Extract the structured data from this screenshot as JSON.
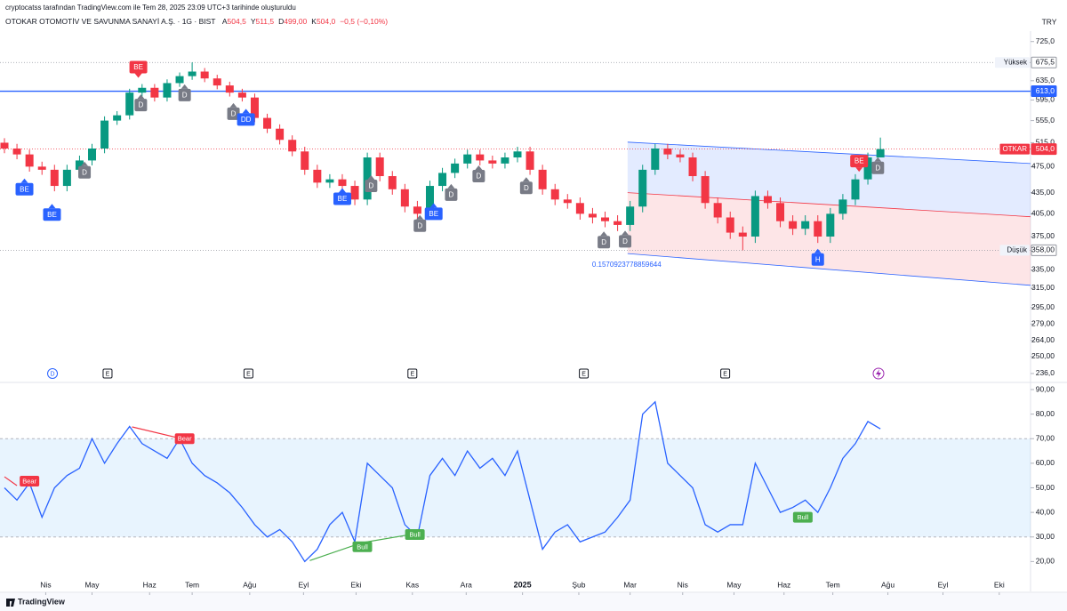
{
  "header": {
    "credit": "cryptocatss tarafından TradingView.com ile Tem 28, 2025 23:09 UTC+3 tarihinde oluşturuldu",
    "currency": "TRY",
    "symbol": "OTOKAR OTOMOTİV VE SAVUNMA SANAYİ A.Ş. · 1G · BIST",
    "ohlc": [
      {
        "k": "A",
        "v": "504,5"
      },
      {
        "k": "Y",
        "v": "511,5"
      },
      {
        "k": "D",
        "v": "499,00"
      },
      {
        "k": "K",
        "v": "504,0"
      }
    ],
    "change": "−0,5 (−0,10%)"
  },
  "footer": {
    "brand": "TradingView"
  },
  "chart_data": [
    {
      "type": "candlestick",
      "log": true,
      "up_color": "#089981",
      "down_color": "#f23645",
      "xlim": [
        0,
        82
      ],
      "ylim": [
        229,
        751
      ],
      "x": [
        0,
        1,
        2,
        3,
        4,
        5,
        6,
        7,
        8,
        9,
        10,
        11,
        12,
        13,
        14,
        15,
        16,
        17,
        18,
        19,
        20,
        21,
        22,
        23,
        24,
        25,
        26,
        27,
        28,
        29,
        30,
        31,
        32,
        33,
        34,
        35,
        36,
        37,
        38,
        39,
        40,
        41,
        42,
        43,
        44,
        45,
        46,
        47,
        48,
        49,
        50,
        51,
        52,
        53,
        54,
        55,
        56,
        57,
        58,
        59,
        60,
        61,
        62,
        63,
        64,
        65,
        66,
        67,
        68,
        69,
        70
      ],
      "open": [
        515,
        505,
        495,
        475,
        470,
        445,
        470,
        485,
        505,
        555,
        565,
        610,
        620,
        600,
        630,
        645,
        655,
        640,
        625,
        610,
        600,
        560,
        540,
        520,
        500,
        470,
        450,
        455,
        445,
        425,
        490,
        460,
        440,
        415,
        405,
        445,
        465,
        480,
        495,
        485,
        480,
        490,
        500,
        470,
        440,
        425,
        420,
        405,
        400,
        395,
        390,
        415,
        470,
        505,
        495,
        490,
        460,
        420,
        400,
        380,
        375,
        430,
        420,
        395,
        385,
        395,
        375,
        405,
        425,
        455,
        490
      ],
      "high": [
        523,
        513,
        503,
        483,
        478,
        478,
        493,
        513,
        563,
        573,
        618,
        628,
        628,
        638,
        653,
        675.5,
        663,
        648,
        633,
        618,
        608,
        568,
        548,
        528,
        508,
        478,
        463,
        463,
        453,
        498,
        498,
        468,
        448,
        423,
        453,
        473,
        488,
        503,
        503,
        493,
        498,
        508,
        508,
        478,
        448,
        433,
        428,
        413,
        408,
        403,
        423,
        478,
        513,
        513,
        503,
        498,
        468,
        428,
        408,
        388,
        438,
        438,
        428,
        403,
        403,
        403,
        413,
        433,
        463,
        498,
        524
      ],
      "low": [
        497,
        487,
        467,
        462,
        437,
        437,
        462,
        477,
        497,
        547,
        557,
        602,
        592,
        592,
        622,
        637,
        632,
        617,
        602,
        592,
        552,
        532,
        512,
        492,
        462,
        442,
        442,
        437,
        417,
        417,
        452,
        432,
        407,
        397,
        397,
        437,
        457,
        472,
        477,
        472,
        472,
        482,
        462,
        432,
        417,
        412,
        397,
        392,
        387,
        382,
        382,
        407,
        462,
        487,
        482,
        452,
        412,
        392,
        372,
        358,
        367,
        412,
        387,
        377,
        377,
        367,
        367,
        397,
        417,
        447,
        490
      ],
      "close": [
        505,
        495,
        475,
        470,
        445,
        470,
        485,
        505,
        555,
        565,
        610,
        620,
        600,
        630,
        645,
        655,
        640,
        625,
        610,
        600,
        560,
        540,
        520,
        500,
        470,
        450,
        455,
        445,
        425,
        490,
        460,
        440,
        415,
        405,
        445,
        465,
        480,
        495,
        485,
        480,
        490,
        500,
        470,
        440,
        425,
        420,
        405,
        400,
        395,
        390,
        415,
        470,
        505,
        495,
        490,
        460,
        420,
        400,
        380,
        375,
        430,
        420,
        395,
        385,
        395,
        375,
        405,
        425,
        455,
        490,
        504
      ],
      "yticks": [
        {
          "value": 725,
          "label": "725,0"
        },
        {
          "value": 635,
          "label": "635,0"
        },
        {
          "value": 595,
          "label": "595,0"
        },
        {
          "value": 555,
          "label": "555,0"
        },
        {
          "value": 515,
          "label": "515,0"
        },
        {
          "value": 475,
          "label": "475,00"
        },
        {
          "value": 435,
          "label": "435,00"
        },
        {
          "value": 405,
          "label": "405,00"
        },
        {
          "value": 375,
          "label": "375,00"
        },
        {
          "value": 335,
          "label": "335,00"
        },
        {
          "value": 315,
          "label": "315,00"
        },
        {
          "value": 295,
          "label": "295,00"
        },
        {
          "value": 279,
          "label": "279,00"
        },
        {
          "value": 264,
          "label": "264,00"
        },
        {
          "value": 250,
          "label": "250,00"
        },
        {
          "value": 236,
          "label": "236,0"
        }
      ],
      "levels": [
        {
          "name": "Yüksek",
          "value": 675.5,
          "label": "675,5",
          "color": "#9598a1",
          "style": "dotted"
        },
        {
          "value": 613,
          "label": "613,0",
          "color": "#2962ff",
          "style": "solid"
        },
        {
          "name": "OTKAR",
          "value": 504,
          "label": "504,0",
          "color": "#f23645",
          "style": "dotted"
        },
        {
          "name": "Düşük",
          "value": 358,
          "label": "358,00",
          "color": "#9598a1",
          "style": "dotted"
        }
      ],
      "channel": {
        "upper": [
          [
            49.8,
            516
          ],
          [
            82,
            480
          ]
        ],
        "middle": [
          [
            49.8,
            435
          ],
          [
            82,
            401
          ]
        ],
        "lower": [
          [
            49.8,
            354
          ],
          [
            82,
            318
          ]
        ],
        "label": "0.1570923778859644",
        "upper_color": "#2962ff",
        "lower_color": "#f23645"
      },
      "markers": [
        {
          "label": "BE",
          "x": 1.6,
          "y": 440,
          "color": "#2962ff",
          "arrow": "up"
        },
        {
          "label": "BE",
          "x": 3.8,
          "y": 404,
          "color": "#2962ff",
          "arrow": "up"
        },
        {
          "label": "D",
          "x": 6.4,
          "y": 466,
          "color": "#787b86",
          "arrow": "up"
        },
        {
          "label": "BE",
          "x": 10.7,
          "y": 665,
          "color": "#f23645",
          "arrow": "down"
        },
        {
          "label": "D",
          "x": 10.9,
          "y": 585,
          "color": "#787b86",
          "arrow": "up"
        },
        {
          "label": "D",
          "x": 14.4,
          "y": 605,
          "color": "#787b86",
          "arrow": "up"
        },
        {
          "label": "D",
          "x": 18.3,
          "y": 568,
          "color": "#787b86",
          "arrow": "up"
        },
        {
          "label": "DD",
          "x": 19.3,
          "y": 557,
          "color": "#2962ff",
          "arrow": "up"
        },
        {
          "label": "BE",
          "x": 27,
          "y": 426,
          "color": "#2962ff",
          "arrow": "up"
        },
        {
          "label": "D",
          "x": 29.3,
          "y": 445,
          "color": "#787b86",
          "arrow": "up"
        },
        {
          "label": "D",
          "x": 33.2,
          "y": 389,
          "color": "#787b86",
          "arrow": "up"
        },
        {
          "label": "BE",
          "x": 34.3,
          "y": 405,
          "color": "#2962ff",
          "arrow": "up"
        },
        {
          "label": "D",
          "x": 35.7,
          "y": 432,
          "color": "#787b86",
          "arrow": "up"
        },
        {
          "label": "D",
          "x": 37.9,
          "y": 460,
          "color": "#787b86",
          "arrow": "up"
        },
        {
          "label": "D",
          "x": 41.7,
          "y": 442,
          "color": "#787b86",
          "arrow": "up"
        },
        {
          "label": "D",
          "x": 47.9,
          "y": 368,
          "color": "#787b86",
          "arrow": "up"
        },
        {
          "label": "D",
          "x": 49.6,
          "y": 369,
          "color": "#787b86",
          "arrow": "up"
        },
        {
          "label": "H",
          "x": 65,
          "y": 347,
          "color": "#2962ff",
          "arrow": "up"
        },
        {
          "label": "BE",
          "x": 68.3,
          "y": 484,
          "color": "#f23645",
          "arrow": "down"
        },
        {
          "label": "D",
          "x": 69.8,
          "y": 473,
          "color": "#787b86",
          "arrow": "up"
        }
      ],
      "events": [
        {
          "label": "D",
          "x": 3.84,
          "shape": "circle",
          "color": "#2962ff"
        },
        {
          "label": "E",
          "x": 8.24,
          "shape": "square",
          "color": "#131722"
        },
        {
          "label": "E",
          "x": 19.5,
          "shape": "square",
          "color": "#131722"
        },
        {
          "label": "E",
          "x": 32.6,
          "shape": "square",
          "color": "#131722"
        },
        {
          "label": "E",
          "x": 46.3,
          "shape": "square",
          "color": "#131722"
        },
        {
          "label": "E",
          "x": 57.6,
          "shape": "square",
          "color": "#131722"
        }
      ]
    },
    {
      "type": "line",
      "color": "#2962ff",
      "xlim": [
        0,
        82
      ],
      "ylim": [
        10,
        90
      ],
      "band": [
        30,
        70
      ],
      "band_color": "#2196f3",
      "x": [
        0,
        1,
        2,
        3,
        4,
        5,
        6,
        7,
        8,
        9,
        10,
        11,
        12,
        13,
        14,
        15,
        16,
        17,
        18,
        19,
        20,
        21,
        22,
        23,
        24,
        25,
        26,
        27,
        28,
        29,
        30,
        31,
        32,
        33,
        34,
        35,
        36,
        37,
        38,
        39,
        40,
        41,
        42,
        43,
        44,
        45,
        46,
        47,
        48,
        49,
        50,
        51,
        52,
        53,
        54,
        55,
        56,
        57,
        58,
        59,
        60,
        61,
        62,
        63,
        64,
        65,
        66,
        67,
        68,
        69,
        70
      ],
      "values": [
        50,
        45,
        52,
        38,
        50,
        55,
        58,
        70,
        60,
        68,
        75,
        68,
        65,
        62,
        70,
        60,
        55,
        52,
        48,
        42,
        35,
        30,
        33,
        28,
        20,
        25,
        35,
        40,
        28,
        60,
        55,
        50,
        35,
        30,
        55,
        62,
        55,
        65,
        58,
        62,
        55,
        65,
        45,
        25,
        32,
        35,
        28,
        30,
        32,
        38,
        45,
        80,
        85,
        60,
        55,
        50,
        35,
        32,
        35,
        35,
        60,
        50,
        40,
        42,
        45,
        40,
        50,
        62,
        68,
        77,
        74
      ],
      "yticks": [
        {
          "value": 20,
          "label": "20,00"
        },
        {
          "value": 30,
          "label": "30,00"
        },
        {
          "value": 40,
          "label": "40,00"
        },
        {
          "value": 50,
          "label": "50,00"
        },
        {
          "value": 60,
          "label": "60,00"
        },
        {
          "value": 70,
          "label": "70,00"
        },
        {
          "value": 80,
          "label": "80,00"
        },
        {
          "value": 90,
          "label": "90,00"
        }
      ],
      "xticks": [
        {
          "value": 3.3,
          "label": "Nis"
        },
        {
          "value": 7.0,
          "label": "May"
        },
        {
          "value": 11.6,
          "label": "Haz"
        },
        {
          "value": 15.0,
          "label": "Tem"
        },
        {
          "value": 19.6,
          "label": "Ağu"
        },
        {
          "value": 23.9,
          "label": "Eyl"
        },
        {
          "value": 28.1,
          "label": "Eki"
        },
        {
          "value": 32.6,
          "label": "Kas"
        },
        {
          "value": 36.9,
          "label": "Ara"
        },
        {
          "value": 41.4,
          "label": "2025"
        },
        {
          "value": 45.9,
          "label": "Şub"
        },
        {
          "value": 50.0,
          "label": "Mar"
        },
        {
          "value": 54.2,
          "label": "Nis"
        },
        {
          "value": 58.3,
          "label": "May"
        },
        {
          "value": 62.3,
          "label": "Haz"
        },
        {
          "value": 66.2,
          "label": "Tem"
        },
        {
          "value": 70.6,
          "label": "Ağu"
        },
        {
          "value": 75.0,
          "label": "Eyl"
        },
        {
          "value": 79.5,
          "label": "Eki"
        }
      ],
      "divergences": [
        {
          "label": "Bear",
          "color": "#f23645",
          "line": [
            [
              0,
              54.5
            ],
            [
              1,
              50.9
            ]
          ],
          "at": [
            2.0,
            52.7
          ]
        },
        {
          "label": "Bear",
          "color": "#f23645",
          "line": [
            [
              10.2,
              74.8
            ],
            [
              14.4,
              69.7
            ]
          ],
          "at": [
            14.4,
            70
          ]
        },
        {
          "label": "Bull",
          "color": "#4caf50",
          "line": [
            [
              24.4,
              20.4
            ],
            [
              28.6,
              27.7
            ]
          ],
          "at": [
            28.6,
            26
          ]
        },
        {
          "label": "Bull",
          "color": "#4caf50",
          "line": [
            [
              28.6,
              27.7
            ],
            [
              32.8,
              31.3
            ]
          ],
          "at": [
            32.8,
            31
          ]
        },
        {
          "label": "Bull",
          "color": "#4caf50",
          "at": [
            63.8,
            38
          ]
        }
      ]
    }
  ]
}
